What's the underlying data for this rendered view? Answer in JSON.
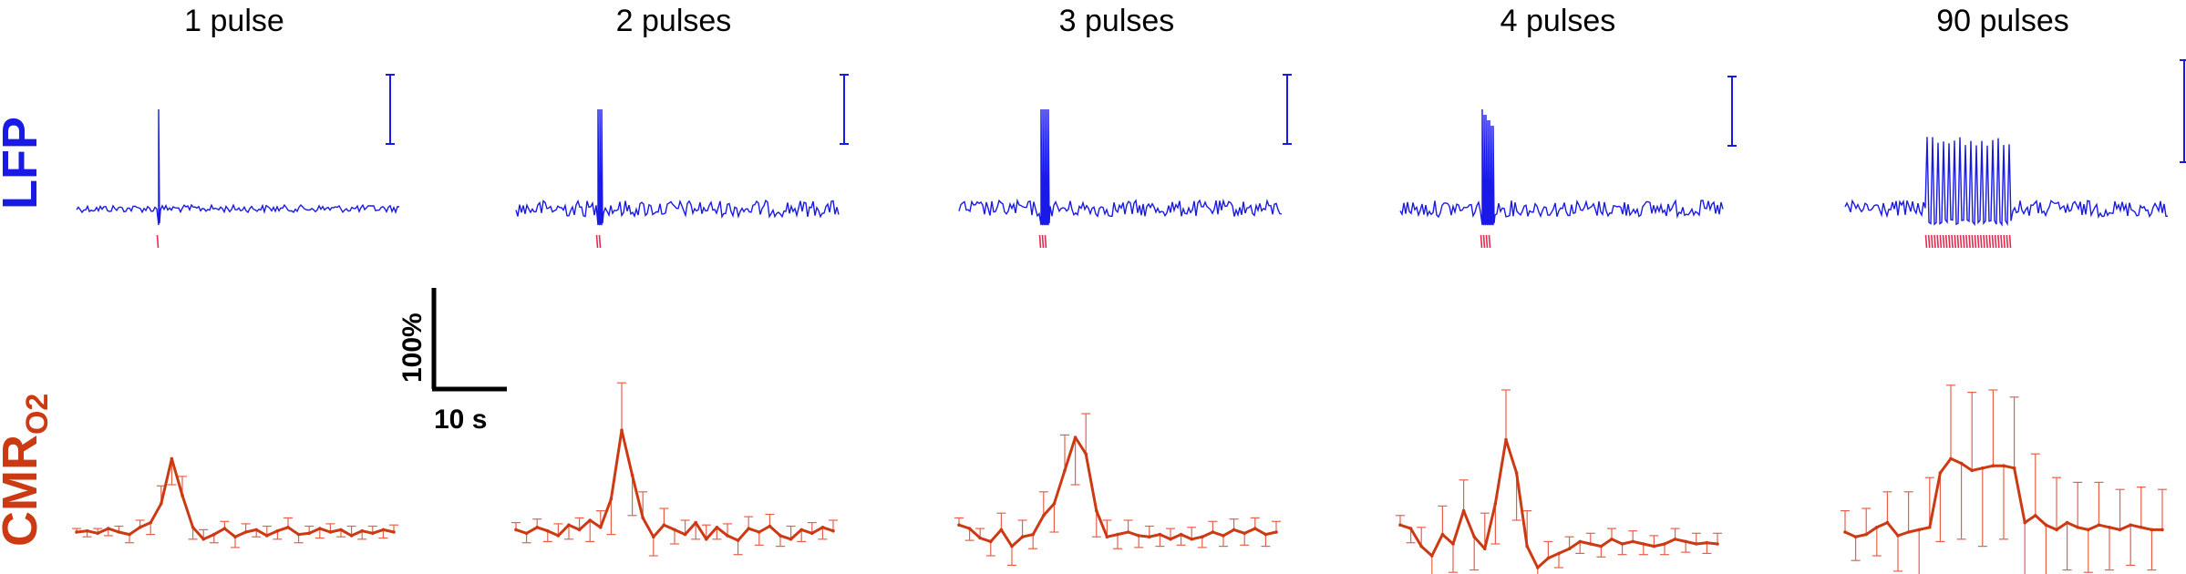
{
  "colors": {
    "lfp": "#1a1ae6",
    "stim": "#e8294f",
    "cmro2": "#cc3a14",
    "errorbar": "#e8604a",
    "scale": "#000000"
  },
  "row_labels": {
    "lfp": "LFP",
    "cmro2_main": "CMR",
    "cmro2_sub": "O2"
  },
  "scale_bar": {
    "y_label": "100%",
    "x_label": "10 s"
  },
  "chart_data": [
    {
      "type": "line",
      "title": "1 pulse",
      "pulses": 1,
      "x": [
        0,
        1,
        2,
        3,
        4,
        5,
        6,
        7,
        8,
        9,
        10,
        11,
        12,
        13,
        14,
        15,
        16,
        17,
        18,
        19,
        20,
        21,
        22,
        23,
        24,
        25,
        26,
        27,
        28,
        29,
        30
      ],
      "series": [
        {
          "values": [
            0,
            1,
            -1,
            3,
            0,
            -2,
            4,
            8,
            24,
            62,
            31,
            4,
            -6,
            -2,
            3,
            -4,
            0,
            2,
            -3,
            1,
            4,
            -2,
            -1,
            3,
            0,
            2,
            -3,
            1,
            -1,
            2,
            0
          ],
          "error": [
            3,
            5,
            4,
            6,
            5,
            7,
            6,
            10,
            15,
            22,
            16,
            10,
            8,
            7,
            6,
            9,
            7,
            6,
            8,
            7,
            8,
            7,
            6,
            8,
            7,
            6,
            8,
            7,
            6,
            7,
            6
          ]
        }
      ]
    },
    {
      "type": "line",
      "title": "2 pulses",
      "pulses": 2,
      "x": [
        0,
        1,
        2,
        3,
        4,
        5,
        6,
        7,
        8,
        9,
        10,
        11,
        12,
        13,
        14,
        15,
        16,
        17,
        18,
        19,
        20,
        21,
        22,
        23,
        24,
        25,
        26,
        27,
        28,
        29,
        30
      ],
      "series": [
        {
          "values": [
            2,
            -1,
            4,
            1,
            -3,
            6,
            2,
            10,
            4,
            28,
            86,
            48,
            12,
            -4,
            6,
            2,
            -2,
            8,
            -6,
            4,
            -3,
            -7,
            3,
            0,
            5,
            -3,
            -6,
            2,
            -1,
            4,
            1
          ],
          "error": [
            6,
            8,
            7,
            9,
            10,
            12,
            10,
            18,
            14,
            30,
            40,
            34,
            22,
            16,
            14,
            12,
            12,
            14,
            12,
            10,
            10,
            12,
            10,
            11,
            10,
            9,
            11,
            10,
            9,
            10,
            9
          ]
        }
      ]
    },
    {
      "type": "line",
      "title": "3 pulses",
      "pulses": 3,
      "x": [
        0,
        1,
        2,
        3,
        4,
        5,
        6,
        7,
        8,
        9,
        10,
        11,
        12,
        13,
        14,
        15,
        16,
        17,
        18,
        19,
        20,
        21,
        22,
        23,
        24,
        25,
        26,
        27,
        28,
        29,
        30
      ],
      "series": [
        {
          "values": [
            6,
            3,
            -5,
            -8,
            2,
            -12,
            -4,
            -2,
            14,
            24,
            52,
            80,
            66,
            18,
            -4,
            -2,
            0,
            -3,
            -4,
            -2,
            -6,
            -2,
            -6,
            -4,
            0,
            -3,
            2,
            -1,
            3,
            -2,
            0
          ],
          "error": [
            6,
            10,
            8,
            12,
            14,
            16,
            14,
            12,
            20,
            24,
            30,
            40,
            34,
            22,
            14,
            12,
            10,
            10,
            9,
            10,
            9,
            9,
            10,
            9,
            9,
            9,
            9,
            10,
            9,
            10,
            9
          ]
        }
      ]
    },
    {
      "type": "line",
      "title": "4 pulses",
      "pulses": 4,
      "x": [
        0,
        1,
        2,
        3,
        4,
        5,
        6,
        7,
        8,
        9,
        10,
        11,
        12,
        13,
        14,
        15,
        16,
        17,
        18,
        19,
        20,
        21,
        22,
        23,
        24,
        25,
        26,
        27,
        28,
        29,
        30
      ],
      "series": [
        {
          "values": [
            6,
            3,
            -12,
            -20,
            -2,
            -10,
            18,
            -4,
            -14,
            24,
            78,
            50,
            -12,
            -30,
            -22,
            -18,
            -14,
            -8,
            -10,
            -12,
            -6,
            -10,
            -8,
            -10,
            -12,
            -10,
            -6,
            -8,
            -10,
            -9,
            -10
          ],
          "error": [
            8,
            12,
            16,
            22,
            24,
            24,
            26,
            28,
            30,
            34,
            42,
            40,
            30,
            22,
            14,
            12,
            10,
            10,
            9,
            9,
            9,
            9,
            9,
            9,
            9,
            9,
            9,
            9,
            9,
            9,
            9
          ]
        }
      ]
    },
    {
      "type": "line",
      "title": "90 pulses",
      "pulses": 90,
      "x": [
        0,
        1,
        2,
        3,
        4,
        5,
        6,
        7,
        8,
        9,
        10,
        11,
        12,
        13,
        14,
        15,
        16,
        17,
        18,
        19,
        20,
        21,
        22,
        23,
        24,
        25,
        26,
        27,
        28,
        29,
        30
      ],
      "series": [
        {
          "values": [
            0,
            -4,
            -2,
            4,
            8,
            -3,
            0,
            2,
            4,
            50,
            62,
            58,
            52,
            54,
            56,
            56,
            54,
            8,
            14,
            6,
            2,
            8,
            4,
            2,
            6,
            4,
            2,
            6,
            4,
            2,
            2
          ],
          "error": [
            18,
            20,
            22,
            24,
            26,
            30,
            34,
            38,
            42,
            58,
            62,
            64,
            66,
            66,
            64,
            62,
            60,
            56,
            52,
            48,
            44,
            40,
            38,
            36,
            36,
            36,
            34,
            34,
            34,
            34,
            34
          ]
        }
      ]
    }
  ]
}
